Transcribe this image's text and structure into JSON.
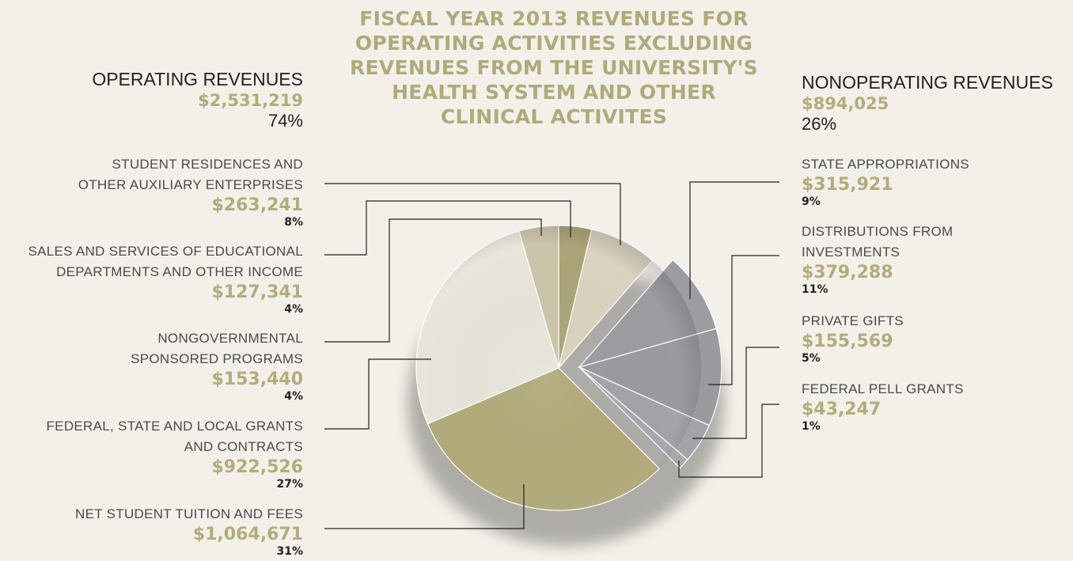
{
  "title_lines": [
    "FISCAL YEAR 2013 REVENUES FOR",
    "OPERATING ACTIVITIES EXCLUDING",
    "REVENUES FROM THE UNIVERSITY'S",
    "HEALTH SYSTEM AND OTHER",
    "CLINICAL ACTIVITES"
  ],
  "operating": {
    "title": "OPERATING REVENUES",
    "amount": "$2,531,219",
    "percent": "74%"
  },
  "nonoperating": {
    "title": "NONOPERATING REVENUES",
    "amount": "$894,025",
    "percent": "26%"
  },
  "left_items": [
    {
      "label_lines": [
        "STUDENT RESIDENCES AND",
        "OTHER AUXILIARY ENTERPRISES"
      ],
      "amount": "$263,241",
      "percent": "8%"
    },
    {
      "label_lines": [
        "SALES AND SERVICES OF EDUCATIONAL",
        "DEPARTMENTS AND OTHER INCOME"
      ],
      "amount": "$127,341",
      "percent": "4%"
    },
    {
      "label_lines": [
        "NONGOVERNMENTAL",
        "SPONSORED PROGRAMS"
      ],
      "amount": "$153,440",
      "percent": "4%"
    },
    {
      "label_lines": [
        "FEDERAL, STATE AND LOCAL GRANTS",
        "AND CONTRACTS"
      ],
      "amount": "$922,526",
      "percent": "27%"
    },
    {
      "label_lines": [
        "NET STUDENT TUITION AND FEES"
      ],
      "amount": "$1,064,671",
      "percent": "31%"
    }
  ],
  "right_items": [
    {
      "label_lines": [
        "STATE APPROPRIATIONS"
      ],
      "amount": "$315,921",
      "percent": "9%"
    },
    {
      "label_lines": [
        "DISTRIBUTIONS FROM",
        "INVESTMENTS"
      ],
      "amount": "$379,288",
      "percent": "11%"
    },
    {
      "label_lines": [
        "PRIVATE GIFTS"
      ],
      "amount": "$155,569",
      "percent": "5%"
    },
    {
      "label_lines": [
        "FEDERAL PELL GRANTS"
      ],
      "amount": "$43,247",
      "percent": "1%"
    }
  ],
  "chart_data": {
    "type": "pie",
    "total": 3425244,
    "slices": [
      {
        "name": "SALES AND SERVICES OF EDUCATIONAL DEPARTMENTS AND OTHER INCOME",
        "value": 127341,
        "group": "operating",
        "color": "#aca479"
      },
      {
        "name": "STUDENT RESIDENCES AND OTHER AUXILIARY ENTERPRISES",
        "value": 263241,
        "group": "operating",
        "color": "#d9d3bf"
      },
      {
        "name": "STATE APPROPRIATIONS",
        "value": 315921,
        "group": "nonoperating",
        "color": "#9c9da1"
      },
      {
        "name": "DISTRIBUTIONS FROM INVESTMENTS",
        "value": 379288,
        "group": "nonoperating",
        "color": "#9a9b9f"
      },
      {
        "name": "PRIVATE GIFTS",
        "value": 155569,
        "group": "nonoperating",
        "color": "#a3a4a8"
      },
      {
        "name": "FEDERAL PELL GRANTS",
        "value": 43247,
        "group": "nonoperating",
        "color": "#a8a9ad"
      },
      {
        "name": "NET STUDENT TUITION AND FEES",
        "value": 1064671,
        "group": "operating",
        "color": "#b2ab7b"
      },
      {
        "name": "FEDERAL, STATE AND LOCAL GRANTS AND CONTRACTS",
        "value": 922526,
        "group": "operating",
        "color": "#e8e5da"
      },
      {
        "name": "NONGOVERNMENTAL SPONSORED PROGRAMS",
        "value": 153440,
        "group": "operating",
        "color": "#cdc5ab"
      }
    ],
    "exploded_group": "nonoperating"
  }
}
